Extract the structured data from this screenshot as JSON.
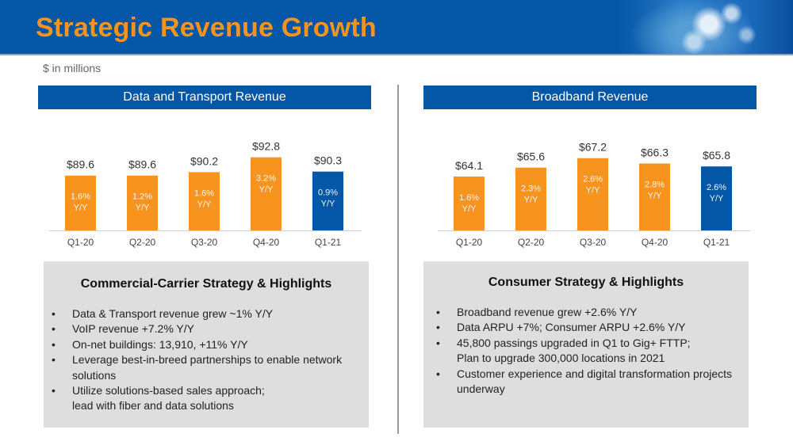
{
  "header": {
    "title": "Strategic Revenue Growth",
    "units": "$ in millions"
  },
  "colors": {
    "brand_blue": "#0456a6",
    "brand_orange": "#f39320",
    "highlight_bar": "#0456a6",
    "bar": "#f7941e"
  },
  "chart_data": [
    {
      "type": "bar",
      "title": "Data and Transport Revenue",
      "categories": [
        "Q1-20",
        "Q2-20",
        "Q3-20",
        "Q4-20",
        "Q1-21"
      ],
      "values": [
        89.6,
        89.6,
        90.2,
        92.8,
        90.3
      ],
      "value_labels": [
        "$89.6",
        "$89.6",
        "$90.2",
        "$92.8",
        "$90.3"
      ],
      "yy_labels": [
        "1.6%",
        "1.2%",
        "1.6%",
        "3.2%",
        "0.9%"
      ],
      "yy_suffix": "Y/Y",
      "highlight_index": 4,
      "xlabel": "",
      "ylabel": "$ in millions",
      "ylim": [
        80,
        94
      ]
    },
    {
      "type": "bar",
      "title": "Broadband Revenue",
      "categories": [
        "Q1-20",
        "Q2-20",
        "Q3-20",
        "Q4-20",
        "Q1-21"
      ],
      "values": [
        64.1,
        65.6,
        67.2,
        66.3,
        65.8
      ],
      "value_labels": [
        "$64.1",
        "$65.6",
        "$67.2",
        "$66.3",
        "$65.8"
      ],
      "yy_labels": [
        "1.6%",
        "2.3%",
        "2.6%",
        "2.8%",
        "2.6%"
      ],
      "yy_suffix": "Y/Y",
      "highlight_index": 4,
      "xlabel": "",
      "ylabel": "$ in millions",
      "ylim": [
        55,
        68.5
      ]
    }
  ],
  "commercial": {
    "title": "Commercial-Carrier Strategy & Highlights",
    "bullets": [
      "Data & Transport revenue grew ~1% Y/Y",
      "VoIP revenue +7.2% Y/Y",
      "On-net buildings: 13,910, +11% Y/Y",
      "Leverage best-in-breed partnerships to enable network solutions",
      "Utilize solutions-based sales approach;\nlead with fiber and data solutions"
    ]
  },
  "consumer": {
    "title": "Consumer Strategy & Highlights",
    "bullets": [
      "Broadband revenue grew +2.6% Y/Y",
      "Data ARPU +7%; Consumer ARPU +2.6% Y/Y",
      "45,800 passings upgraded in Q1 to Gig+ FTTP;\nPlan to upgrade 300,000 locations in 2021",
      "Customer experience and digital transformation projects underway"
    ]
  }
}
